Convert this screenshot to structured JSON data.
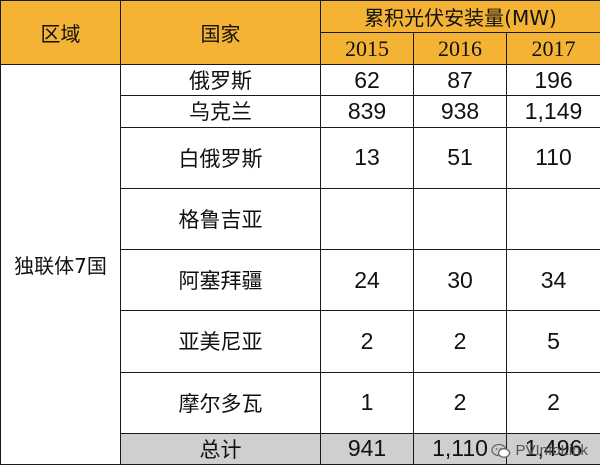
{
  "header": {
    "region": "区域",
    "country": "国家",
    "metric": "累积光伏安装量(MW)",
    "years": [
      "2015",
      "2016",
      "2017"
    ]
  },
  "region": "独联体7国",
  "rows": [
    {
      "country": "俄罗斯",
      "values": [
        "62",
        "87",
        "196"
      ]
    },
    {
      "country": "乌克兰",
      "values": [
        "839",
        "938",
        "1,149"
      ]
    },
    {
      "country": "白俄罗斯",
      "values": [
        "13",
        "51",
        "110"
      ]
    },
    {
      "country": "格鲁吉亚",
      "values": [
        "",
        "",
        ""
      ]
    },
    {
      "country": "阿塞拜疆",
      "values": [
        "24",
        "30",
        "34"
      ]
    },
    {
      "country": "亚美尼亚",
      "values": [
        "2",
        "2",
        "5"
      ]
    },
    {
      "country": "摩尔多瓦",
      "values": [
        "1",
        "2",
        "2"
      ]
    }
  ],
  "total": {
    "label": "总计",
    "values": [
      "941",
      "1,110",
      "1,496"
    ]
  },
  "watermark": "PVInfoLink",
  "colors": {
    "header_bg": "#f5b335",
    "total_bg": "#cfcfcf",
    "border": "#1a1a1a"
  }
}
